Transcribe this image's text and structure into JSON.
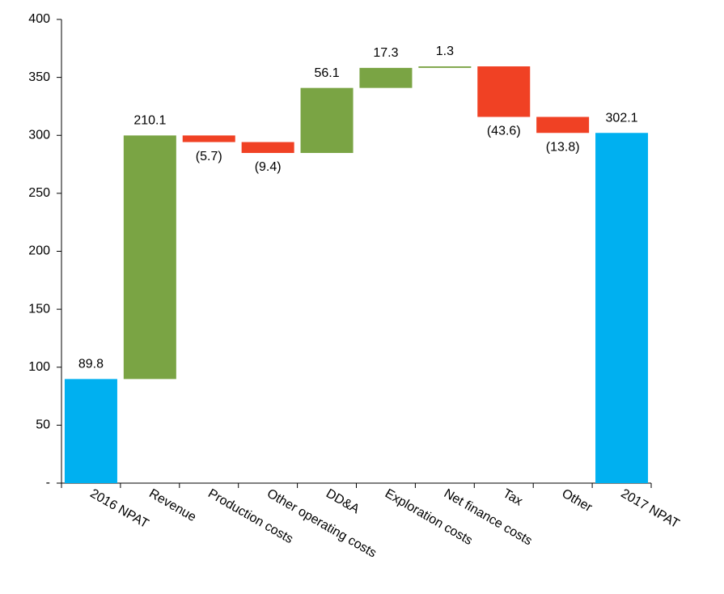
{
  "chart_data": {
    "type": "waterfall",
    "categories": [
      "2016 NPAT",
      "Revenue",
      "Production costs",
      "Other operating costs",
      "DD&A",
      "Exploration costs",
      "Net finance costs",
      "Tax",
      "Other",
      "2017 NPAT"
    ],
    "values": [
      89.8,
      210.1,
      -5.7,
      -9.4,
      56.1,
      17.3,
      1.3,
      -43.6,
      -13.8,
      302.1
    ],
    "value_labels": [
      "89.8",
      "210.1",
      "(5.7)",
      "(9.4)",
      "56.1",
      "17.3",
      "1.3",
      "(43.6)",
      "(13.8)",
      "302.1"
    ],
    "colors": {
      "total": "#00b0f0",
      "increase": "#7aa444",
      "decrease": "#f04124"
    },
    "ylim": [
      0,
      400
    ],
    "yticks": [
      {
        "value": 0,
        "label": "-"
      },
      50,
      100,
      150,
      200,
      250,
      300,
      350,
      400
    ],
    "grid": false
  }
}
